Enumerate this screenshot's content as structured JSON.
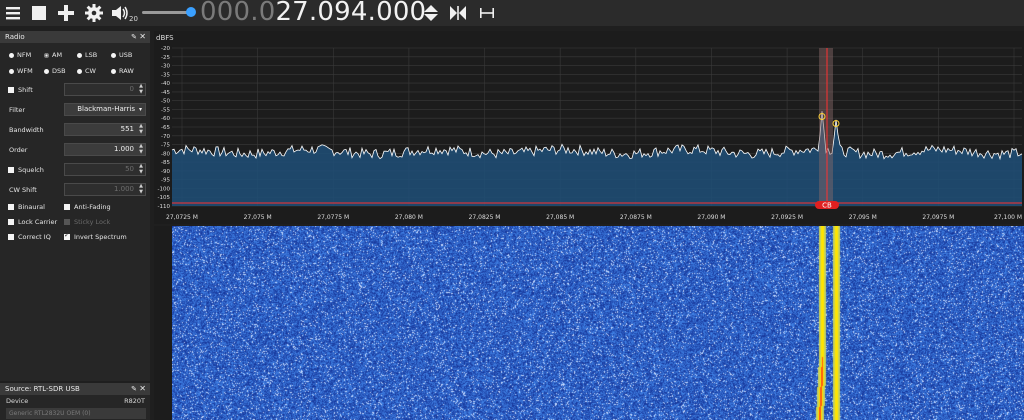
{
  "toolbar": {
    "icons": [
      "menu-icon",
      "stop-icon",
      "add-icon",
      "gear-icon",
      "volume-icon",
      "up-down-icon",
      "center-icon",
      "span-icon"
    ],
    "volume": "20",
    "frequency_dim": "000.0",
    "frequency_bright": "27.094.000"
  },
  "radio_panel": {
    "title": "Radio",
    "modes_row1": [
      "NFM",
      "AM",
      "LSB",
      "USB"
    ],
    "modes_row2": [
      "WFM",
      "DSB",
      "CW",
      "RAW"
    ],
    "selected_mode": "AM",
    "shift": {
      "label": "Shift",
      "value": "0",
      "checked": false
    },
    "filter": {
      "label": "Filter",
      "value": "Blackman-Harris"
    },
    "bandwidth": {
      "label": "Bandwidth",
      "value": "551"
    },
    "order": {
      "label": "Order",
      "value": "1.000"
    },
    "squelch": {
      "label": "Squelch",
      "value": "50",
      "checked": false
    },
    "cw_shift": {
      "label": "CW Shift",
      "value": "1.000"
    },
    "binaural": {
      "label": "Binaural",
      "checked": false
    },
    "anti_fading": {
      "label": "Anti-Fading",
      "checked": false
    },
    "lock_carrier": {
      "label": "Lock Carrier",
      "checked": false
    },
    "sticky_lock": {
      "label": "Sticky Lock",
      "checked": false,
      "enabled": false
    },
    "correct_iq": {
      "label": "Correct IQ",
      "checked": false
    },
    "invert_spectrum": {
      "label": "Invert Spectrum",
      "checked": true
    }
  },
  "source_panel": {
    "title": "Source: RTL-SDR USB",
    "device_label": "Device",
    "device_value": "R820T",
    "device_select": "Generic RTL2832U OEM (0)"
  },
  "spectrum": {
    "y_unit": "dBFS",
    "y_ticks": [
      "-20",
      "-25",
      "-30",
      "-35",
      "-40",
      "-45",
      "-50",
      "-55",
      "-60",
      "-65",
      "-70",
      "-75",
      "-80",
      "-85",
      "-90",
      "-95",
      "-100",
      "-105",
      "-110"
    ],
    "x_ticks": [
      "27,0725 M",
      "27,075 M",
      "27,0775 M",
      "27,080 M",
      "27,0825 M",
      "27,085 M",
      "27,0875 M",
      "27,090 M",
      "27,0925 M",
      "27,095 M",
      "27,0975 M",
      "27,100 M"
    ],
    "band_label": "CB",
    "colors": {
      "trace": "#ffffff",
      "fill": "#1f4f78",
      "marker": "#ff3030",
      "peak": "#ffd23a"
    }
  },
  "waterfall": {
    "colors": {
      "background": "#1a3fb0",
      "signal": "#ffe400",
      "core": "#ff5a10"
    }
  }
}
